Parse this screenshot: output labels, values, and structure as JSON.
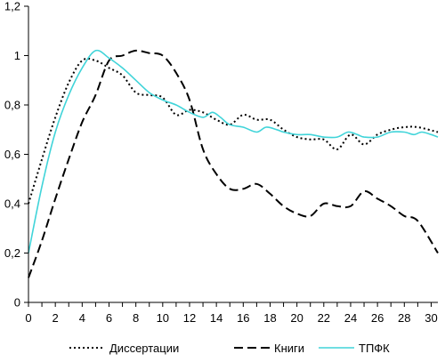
{
  "chart_data": {
    "type": "line",
    "title": "",
    "xlabel": "",
    "ylabel": "",
    "xlim": [
      0,
      30.5
    ],
    "ylim": [
      0,
      1.2
    ],
    "xticks": [
      "0",
      "2",
      "4",
      "6",
      "8",
      "10",
      "12",
      "14",
      "16",
      "18",
      "20",
      "22",
      "24",
      "26",
      "28",
      "30"
    ],
    "yticks": [
      "0",
      "0,2",
      "0,4",
      "0,6",
      "0,8",
      "1",
      "1,2"
    ],
    "grid": false,
    "legend": "bottom",
    "series": [
      {
        "name": "Диссертации",
        "style": "dotted",
        "color": "#000000",
        "x": [
          0,
          1,
          2,
          3,
          4,
          5,
          6,
          7,
          8,
          9,
          10,
          11,
          12,
          13,
          14,
          15,
          16,
          17,
          18,
          19,
          20,
          21,
          22,
          23,
          24,
          25,
          26,
          27,
          28,
          29,
          30.5
        ],
        "y": [
          0.4,
          0.58,
          0.75,
          0.89,
          0.98,
          0.98,
          0.95,
          0.92,
          0.85,
          0.84,
          0.83,
          0.76,
          0.78,
          0.77,
          0.74,
          0.72,
          0.76,
          0.74,
          0.74,
          0.7,
          0.67,
          0.66,
          0.66,
          0.62,
          0.68,
          0.64,
          0.68,
          0.7,
          0.71,
          0.71,
          0.69
        ]
      },
      {
        "name": "Книги",
        "style": "dashed",
        "color": "#000000",
        "x": [
          0,
          1,
          2,
          3,
          4,
          5,
          6,
          7,
          8,
          9,
          10,
          11,
          12,
          13,
          14,
          15,
          16,
          17,
          18,
          19,
          20,
          21,
          22,
          23,
          24,
          25,
          26,
          27,
          28,
          29,
          30.5
        ],
        "y": [
          0.1,
          0.25,
          0.42,
          0.58,
          0.73,
          0.84,
          0.98,
          1.0,
          1.02,
          1.01,
          1.0,
          0.93,
          0.82,
          0.62,
          0.52,
          0.46,
          0.46,
          0.48,
          0.44,
          0.39,
          0.36,
          0.35,
          0.4,
          0.39,
          0.39,
          0.45,
          0.42,
          0.39,
          0.35,
          0.33,
          0.2
        ]
      },
      {
        "name": "ТПФК",
        "style": "solid",
        "color": "#40d4d9",
        "x": [
          0,
          1,
          2,
          3,
          4,
          5,
          6,
          7,
          8,
          9,
          10,
          11,
          12,
          13,
          13.7,
          14.3,
          15,
          16,
          17,
          17.7,
          18.5,
          19,
          20,
          21,
          22,
          23,
          23.8,
          24.5,
          25,
          26,
          27,
          28,
          28.7,
          29.3,
          30,
          30.5
        ],
        "y": [
          0.2,
          0.47,
          0.69,
          0.84,
          0.95,
          1.02,
          0.99,
          0.95,
          0.9,
          0.85,
          0.82,
          0.8,
          0.77,
          0.75,
          0.77,
          0.75,
          0.72,
          0.71,
          0.69,
          0.71,
          0.7,
          0.69,
          0.68,
          0.68,
          0.67,
          0.67,
          0.69,
          0.68,
          0.67,
          0.67,
          0.69,
          0.69,
          0.68,
          0.69,
          0.68,
          0.67
        ]
      }
    ]
  }
}
